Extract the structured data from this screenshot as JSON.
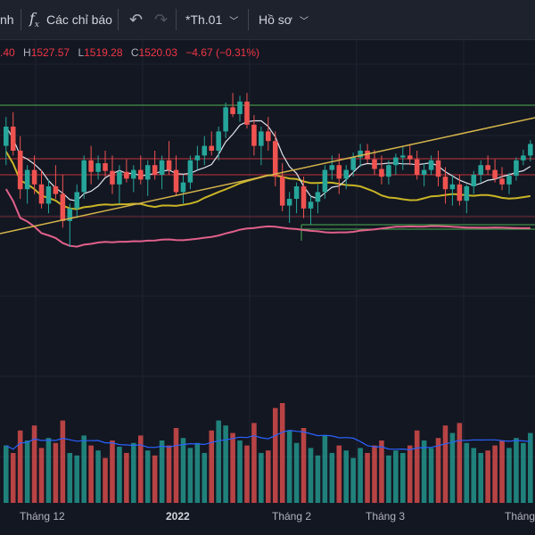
{
  "toolbar": {
    "fragment_label": "nh",
    "indicators_label": "Các chỉ báo",
    "indicators_icon": "function-icon",
    "undo_icon": "undo-icon",
    "redo_icon": "redo-icon",
    "interval_label": "*Th.01",
    "profile_label": "Hồ sơ"
  },
  "legend": {
    "open_value": ".40",
    "high_key": "H",
    "high_value": "1527.57",
    "low_key": "L",
    "low_value": "1519.28",
    "close_key": "C",
    "close_value": "1520.03",
    "change": "−4.67 (−0.31%)"
  },
  "colors": {
    "up": "#26a69a",
    "down": "#ef5350",
    "background": "#131722",
    "ma_fast": "#e0e3eb",
    "ma_mid": "#c9b526",
    "ma_slow": "#e0608a",
    "volume_ma": "#2962ff",
    "trendline": "#d4b44a",
    "level_red": "#c2333b",
    "level_green": "#4caf50"
  },
  "x_axis": {
    "labels": [
      "Tháng 12",
      "2022",
      "Tháng 2",
      "Tháng 3",
      "Tháng"
    ]
  },
  "chart_data": {
    "type": "candlestick",
    "note_scale": "price axis not visible in the screenshot; values are relative chart units",
    "candles": [
      [
        310,
        340,
        290,
        330
      ],
      [
        330,
        345,
        300,
        305
      ],
      [
        305,
        320,
        255,
        265
      ],
      [
        265,
        290,
        250,
        285
      ],
      [
        285,
        300,
        260,
        270
      ],
      [
        270,
        285,
        245,
        250
      ],
      [
        250,
        275,
        240,
        268
      ],
      [
        268,
        290,
        255,
        260
      ],
      [
        260,
        280,
        225,
        232
      ],
      [
        232,
        250,
        205,
        245
      ],
      [
        245,
        270,
        235,
        262
      ],
      [
        262,
        300,
        255,
        295
      ],
      [
        295,
        310,
        270,
        283
      ],
      [
        283,
        300,
        275,
        292
      ],
      [
        292,
        305,
        278,
        284
      ],
      [
        284,
        300,
        260,
        270
      ],
      [
        270,
        290,
        250,
        283
      ],
      [
        283,
        296,
        272,
        276
      ],
      [
        276,
        290,
        262,
        285
      ],
      [
        285,
        300,
        270,
        275
      ],
      [
        275,
        295,
        258,
        290
      ],
      [
        290,
        305,
        275,
        280
      ],
      [
        280,
        300,
        265,
        295
      ],
      [
        295,
        315,
        280,
        285
      ],
      [
        285,
        300,
        258,
        262
      ],
      [
        262,
        280,
        250,
        272
      ],
      [
        272,
        300,
        265,
        295
      ],
      [
        295,
        310,
        285,
        300
      ],
      [
        300,
        320,
        290,
        310
      ],
      [
        310,
        325,
        300,
        305
      ],
      [
        305,
        330,
        295,
        325
      ],
      [
        325,
        355,
        318,
        350
      ],
      [
        350,
        365,
        340,
        343
      ],
      [
        343,
        362,
        335,
        356
      ],
      [
        356,
        365,
        328,
        332
      ],
      [
        332,
        342,
        300,
        310
      ],
      [
        310,
        330,
        290,
        325
      ],
      [
        325,
        340,
        305,
        315
      ],
      [
        315,
        325,
        268,
        278
      ],
      [
        278,
        292,
        242,
        248
      ],
      [
        248,
        262,
        230,
        255
      ],
      [
        255,
        272,
        240,
        268
      ],
      [
        268,
        278,
        235,
        245
      ],
      [
        245,
        258,
        228,
        252
      ],
      [
        252,
        270,
        240,
        262
      ],
      [
        262,
        290,
        255,
        285
      ],
      [
        285,
        300,
        275,
        290
      ],
      [
        290,
        302,
        260,
        276
      ],
      [
        276,
        290,
        265,
        285
      ],
      [
        285,
        303,
        278,
        298
      ],
      [
        298,
        312,
        288,
        305
      ],
      [
        305,
        312,
        292,
        296
      ],
      [
        296,
        306,
        280,
        286
      ],
      [
        286,
        300,
        270,
        278
      ],
      [
        278,
        295,
        270,
        290
      ],
      [
        290,
        302,
        280,
        298
      ],
      [
        298,
        310,
        285,
        300
      ],
      [
        300,
        312,
        290,
        296
      ],
      [
        296,
        305,
        275,
        280
      ],
      [
        280,
        292,
        268,
        285
      ],
      [
        285,
        300,
        280,
        295
      ],
      [
        295,
        305,
        268,
        278
      ],
      [
        278,
        288,
        250,
        265
      ],
      [
        265,
        280,
        248,
        270
      ],
      [
        270,
        280,
        248,
        253
      ],
      [
        253,
        270,
        240,
        268
      ],
      [
        268,
        284,
        260,
        280
      ],
      [
        280,
        295,
        272,
        290
      ],
      [
        290,
        300,
        280,
        285
      ],
      [
        285,
        296,
        272,
        276
      ],
      [
        276,
        288,
        264,
        270
      ],
      [
        270,
        282,
        260,
        279
      ],
      [
        279,
        298,
        274,
        295
      ],
      [
        295,
        306,
        290,
        300
      ],
      [
        300,
        316,
        294,
        312
      ]
    ],
    "volumes": [
      46,
      40,
      58,
      50,
      62,
      44,
      52,
      48,
      66,
      40,
      38,
      54,
      46,
      42,
      36,
      50,
      45,
      40,
      48,
      54,
      42,
      38,
      50,
      46,
      60,
      52,
      44,
      48,
      40,
      58,
      66,
      62,
      56,
      50,
      46,
      64,
      40,
      42,
      76,
      80,
      58,
      48,
      60,
      44,
      38,
      54,
      40,
      46,
      42,
      36,
      44,
      40,
      46,
      50,
      38,
      42,
      40,
      46,
      58,
      50,
      44,
      52,
      62,
      56,
      64,
      48,
      44,
      40,
      42,
      46,
      50,
      44,
      52,
      48,
      56
    ]
  }
}
